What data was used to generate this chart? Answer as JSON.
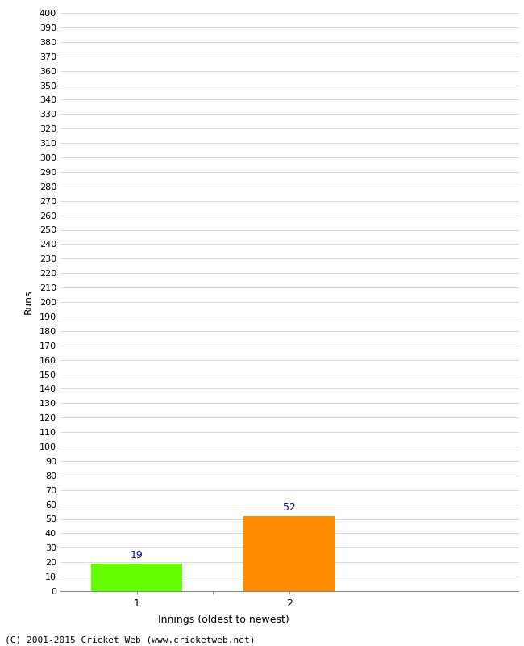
{
  "categories": [
    "1",
    "2"
  ],
  "values": [
    19,
    52
  ],
  "bar_colors": [
    "#66ff00",
    "#ff8c00"
  ],
  "bar_label_color": "#0000cc",
  "ylabel": "Runs",
  "xlabel": "Innings (oldest to newest)",
  "ylim": [
    0,
    400
  ],
  "ytick_step": 10,
  "background_color": "#ffffff",
  "grid_color": "#cccccc",
  "footer": "(C) 2001-2015 Cricket Web (www.cricketweb.net)",
  "bar_width": 0.6,
  "xlim": [
    -0.5,
    2.5
  ]
}
